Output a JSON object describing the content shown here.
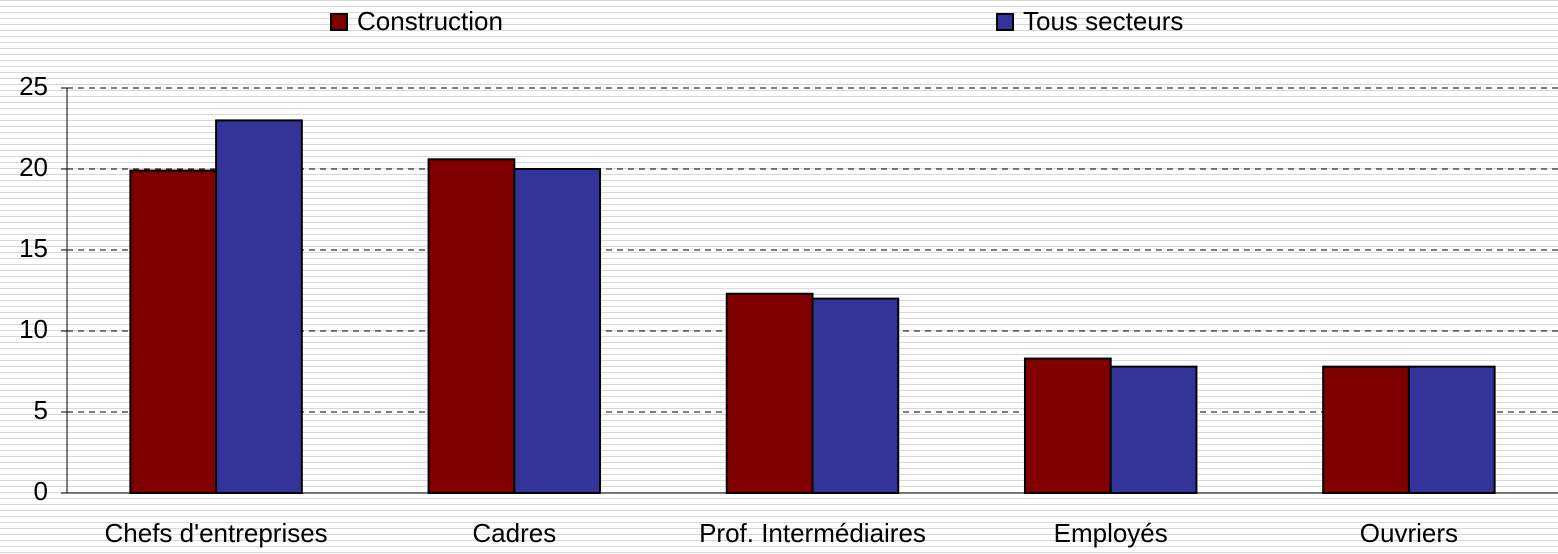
{
  "chart_data": {
    "type": "bar",
    "categories": [
      "Chefs d'entreprises",
      "Cadres",
      "Prof. Intermédiaires",
      "Employés",
      "Ouvriers"
    ],
    "series": [
      {
        "name": "Construction",
        "color": "#800000",
        "values": [
          19.9,
          20.6,
          12.3,
          8.3,
          7.8
        ]
      },
      {
        "name": "Tous secteurs",
        "color": "#333399",
        "values": [
          23.0,
          20.0,
          12.0,
          7.8,
          7.8
        ]
      }
    ],
    "ylim": [
      0,
      25
    ],
    "yticks": [
      0,
      5,
      10,
      15,
      20,
      25
    ],
    "grid": true
  }
}
